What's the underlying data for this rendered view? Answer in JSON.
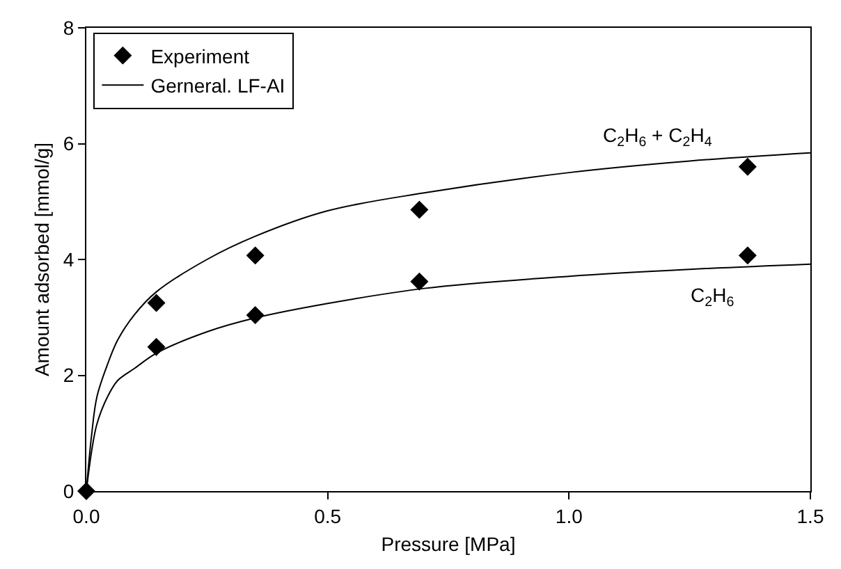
{
  "chart_data": {
    "type": "line",
    "xlabel": "Pressure [MPa]",
    "ylabel": "Amount adsorbed [mmol/g]",
    "xlim": [
      0,
      1.5
    ],
    "ylim": [
      0,
      8
    ],
    "xticks": [
      {
        "value": 0,
        "label": "0.0"
      },
      {
        "value": 0.5,
        "label": "0.5"
      },
      {
        "value": 1,
        "label": "1.0"
      },
      {
        "value": 1.5,
        "label": "1.5"
      }
    ],
    "yticks": [
      0,
      2,
      4,
      6,
      8
    ],
    "grid": false,
    "legend": "top left",
    "line_style": "solid",
    "series": [
      {
        "name": "Experiment",
        "type": "scatter",
        "marker": "diamond",
        "color": "#000000",
        "x": [
          0,
          0.145,
          0.145,
          0.35,
          0.35,
          0.69,
          0.69,
          1.37,
          1.37
        ],
        "values": [
          0,
          3.25,
          2.49,
          4.07,
          3.04,
          4.86,
          3.62,
          5.6,
          4.07
        ]
      },
      {
        "name": "Gerneral. LF-AI",
        "marker": "none",
        "color": "#000000",
        "x": [
          0,
          0.011,
          0.022,
          0.044,
          0.065,
          0.1,
          0.145,
          0.25,
          0.35,
          0.5,
          0.7,
          1,
          1.25,
          1.5
        ],
        "values": [
          0,
          0.97,
          1.63,
          2.19,
          2.61,
          3.05,
          3.44,
          4.0,
          4.4,
          4.84,
          5.15,
          5.5,
          5.7,
          5.84
        ]
      },
      {
        "marker": "none",
        "color": "#000000",
        "x": [
          0,
          0.011,
          0.022,
          0.044,
          0.065,
          0.1,
          0.145,
          0.25,
          0.35,
          0.5,
          0.7,
          1,
          1.25,
          1.5
        ],
        "values": [
          0,
          0.69,
          1.16,
          1.63,
          1.91,
          2.12,
          2.38,
          2.75,
          2.99,
          3.24,
          3.5,
          3.71,
          3.83,
          3.92
        ]
      }
    ],
    "annotations": [
      "C$_{2}$H$_{6}$ + C$_{2}$H$_{4}$",
      "C$_{2}$H$_{6}$"
    ]
  }
}
